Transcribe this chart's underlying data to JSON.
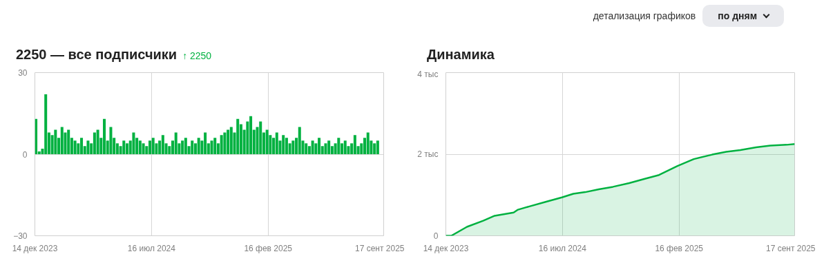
{
  "chart_data": [
    {
      "type": "other",
      "annotations": [
        "детализация графиков",
        "по дням"
      ]
    },
    {
      "type": "bar",
      "title": "2250 — все подписчики",
      "subtitle": "↑ 2250",
      "x": [
        "2023-12-16",
        "2023-12-22",
        "2023-12-28",
        "2024-01-03",
        "2024-01-09",
        "2024-01-15",
        "2024-01-21",
        "2024-01-27",
        "2024-02-02",
        "2024-02-08",
        "2024-02-14",
        "2024-02-20",
        "2024-02-26",
        "2024-03-03",
        "2024-03-09",
        "2024-03-15",
        "2024-03-21",
        "2024-03-27",
        "2024-04-02",
        "2024-04-08",
        "2024-04-14",
        "2024-04-20",
        "2024-04-26",
        "2024-05-02",
        "2024-05-08",
        "2024-05-14",
        "2024-05-20",
        "2024-05-26",
        "2024-06-01",
        "2024-06-07",
        "2024-06-13",
        "2024-06-19",
        "2024-06-25",
        "2024-07-01",
        "2024-07-07",
        "2024-07-13",
        "2024-07-19",
        "2024-07-25",
        "2024-07-31",
        "2024-08-06",
        "2024-08-12",
        "2024-08-18",
        "2024-08-24",
        "2024-08-30",
        "2024-09-05",
        "2024-09-11",
        "2024-09-17",
        "2024-09-23",
        "2024-09-29",
        "2024-10-05",
        "2024-10-11",
        "2024-10-17",
        "2024-10-23",
        "2024-10-29",
        "2024-11-04",
        "2024-11-10",
        "2024-11-16",
        "2024-11-22",
        "2024-11-28",
        "2024-12-04",
        "2024-12-10",
        "2024-12-16",
        "2024-12-22",
        "2024-12-28",
        "2025-01-03",
        "2025-01-09",
        "2025-01-15",
        "2025-01-21",
        "2025-01-27",
        "2025-02-02",
        "2025-02-08",
        "2025-02-14",
        "2025-02-20",
        "2025-02-26",
        "2025-03-04",
        "2025-03-10",
        "2025-03-16",
        "2025-03-22",
        "2025-03-28",
        "2025-04-03",
        "2025-04-09",
        "2025-04-15",
        "2025-04-21",
        "2025-04-27",
        "2025-05-03",
        "2025-05-09",
        "2025-05-15",
        "2025-05-21",
        "2025-05-27",
        "2025-06-02",
        "2025-06-08",
        "2025-06-14",
        "2025-06-20",
        "2025-06-26",
        "2025-07-02",
        "2025-07-08",
        "2025-07-14",
        "2025-07-20",
        "2025-07-26",
        "2025-08-01",
        "2025-08-07",
        "2025-08-13",
        "2025-08-19",
        "2025-08-25",
        "2025-08-31",
        "2025-09-06"
      ],
      "series": [
        {
          "color": "#00b140",
          "values": [
            13,
            1,
            2,
            22,
            8,
            7,
            9,
            6,
            10,
            8,
            9,
            6,
            5,
            4,
            6,
            3,
            5,
            4,
            8,
            9,
            6,
            13,
            5,
            10,
            6,
            4,
            3,
            5,
            4,
            5,
            8,
            6,
            5,
            4,
            3,
            5,
            6,
            4,
            5,
            7,
            4,
            3,
            5,
            8,
            4,
            5,
            6,
            3,
            5,
            4,
            6,
            5,
            8,
            4,
            5,
            6,
            4,
            7,
            8,
            9,
            10,
            8,
            13,
            11,
            9,
            12,
            14,
            9,
            10,
            12,
            8,
            9,
            7,
            6,
            8,
            5,
            7,
            6,
            4,
            5,
            6,
            10,
            5,
            4,
            3,
            5,
            4,
            6,
            3,
            4,
            5,
            3,
            4,
            6,
            4,
            5,
            3,
            4,
            7,
            3,
            4,
            6,
            8,
            5,
            4,
            5
          ]
        }
      ],
      "xlim": [
        "2023-12-14",
        "2025-09-17"
      ],
      "xticks": [
        {
          "value": "2023-12-14",
          "label": "14 дек 2023"
        },
        {
          "value": "2024-07-16",
          "label": "16 июл 2024"
        },
        {
          "value": "2025-02-16",
          "label": "16 фев 2025"
        },
        {
          "value": "2025-09-17",
          "label": "17 сент 2025"
        }
      ],
      "ylim": [
        -30,
        30
      ],
      "yticks": [
        -30,
        0,
        30
      ],
      "grid": true
    },
    {
      "type": "area",
      "title": "Динамика",
      "x": [
        "2023-12-14",
        "2023-12-24",
        "2024-01-22",
        "2024-02-21",
        "2024-03-13",
        "2024-04-17",
        "2024-04-25",
        "2024-05-16",
        "2024-06-15",
        "2024-07-15",
        "2024-08-05",
        "2024-08-27",
        "2024-09-21",
        "2024-10-17",
        "2024-11-16",
        "2024-12-16",
        "2025-01-10",
        "2025-02-13",
        "2025-03-15",
        "2025-04-18",
        "2025-05-14",
        "2025-06-09",
        "2025-07-08",
        "2025-08-03",
        "2025-09-02",
        "2025-09-17"
      ],
      "series": [
        {
          "color": "#00b140",
          "values": [
            0,
            0,
            0.22,
            0.37,
            0.49,
            0.57,
            0.64,
            0.72,
            0.83,
            0.94,
            1.03,
            1.07,
            1.14,
            1.2,
            1.29,
            1.4,
            1.49,
            1.71,
            1.88,
            1.99,
            2.06,
            2.1,
            2.17,
            2.21,
            2.23,
            2.25
          ]
        }
      ],
      "xlim": [
        "2023-12-14",
        "2025-09-17"
      ],
      "xticks": [
        {
          "value": "2023-12-14",
          "label": "14 дек 2023"
        },
        {
          "value": "2024-07-16",
          "label": "16 июл 2024"
        },
        {
          "value": "2025-02-16",
          "label": "16 фев 2025"
        },
        {
          "value": "2025-09-17",
          "label": "17 сент 2025"
        }
      ],
      "ylim": [
        0,
        4
      ],
      "yticks": [
        {
          "value": 0,
          "label": "0"
        },
        {
          "value": 2,
          "label": "2 тыс"
        },
        {
          "value": 4,
          "label": "4 тыс"
        }
      ],
      "grid": true
    }
  ]
}
